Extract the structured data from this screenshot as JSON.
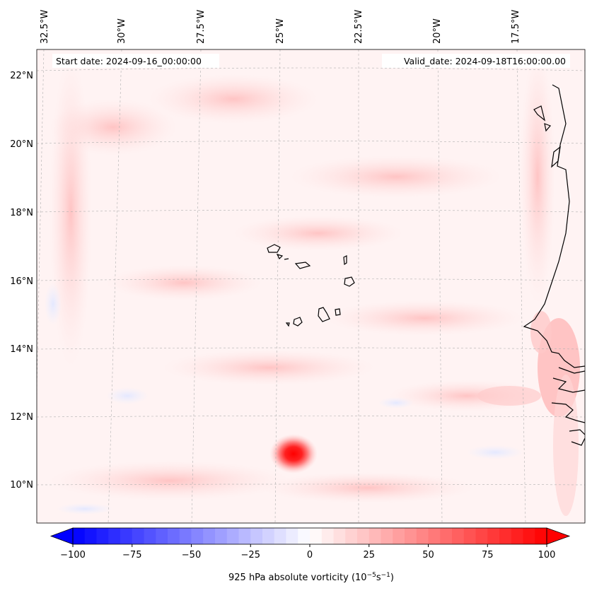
{
  "header": {
    "start_date": "Start date: 2024-09-16_00:00:00",
    "valid_date": "Valid_date: 2024-09-18T16:00:00.00"
  },
  "longitude_labels": [
    "32.5°W",
    "30°W",
    "27.5°W",
    "25°W",
    "22.5°W",
    "20°W",
    "17.5°W"
  ],
  "latitude_labels": [
    "22°N",
    "20°N",
    "18°N",
    "16°N",
    "14°N",
    "12°N",
    "10°N"
  ],
  "colorbar": {
    "ticks": [
      "−100",
      "−75",
      "−50",
      "−25",
      "0",
      "25",
      "50",
      "75",
      "100"
    ],
    "label": "925 hPa absolute vorticity (10",
    "label_exp1": "−5",
    "label_mid": "s",
    "label_exp2": "−1",
    "label_end": ")",
    "min": -100,
    "max": 100,
    "step": 5,
    "cmap_low": "#0000ff",
    "cmap_mid": "#ffffff",
    "cmap_high": "#ff0000"
  },
  "features": {
    "vortex_max_value": 100,
    "vortex_location": "near 10.8°N 24.2°W",
    "coast_color": "#000000",
    "gridline_color": "#b0b0b0"
  }
}
